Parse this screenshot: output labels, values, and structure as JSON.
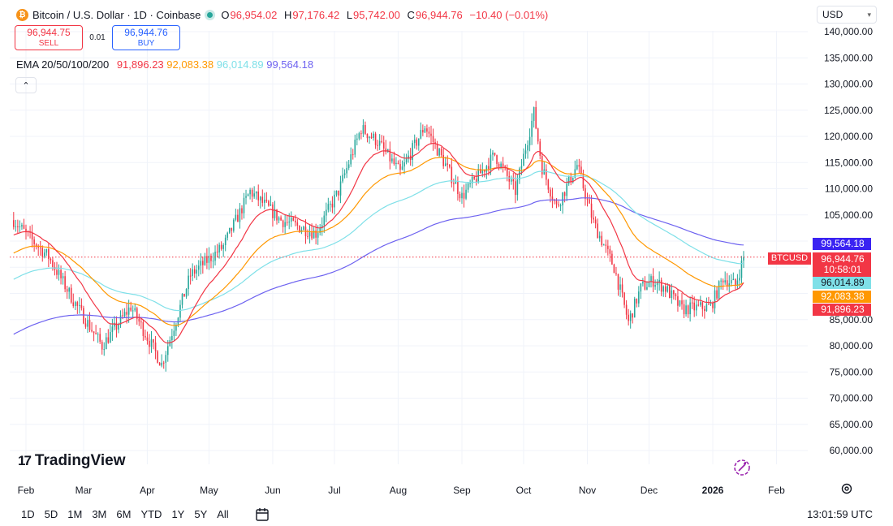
{
  "header": {
    "coin_glyph": "₿",
    "title": "Bitcoin / U.S. Dollar · 1D · Coinbase",
    "ohlc": {
      "o_label": "O",
      "o": "96,954.02",
      "h_label": "H",
      "h": "97,176.42",
      "l_label": "L",
      "l": "95,742.00",
      "c_label": "C",
      "c": "96,944.76",
      "change": "−10.40 (−0.01%)"
    }
  },
  "trade": {
    "sell_price": "96,944.75",
    "sell_label": "SELL",
    "spread": "0.01",
    "buy_price": "96,944.76",
    "buy_label": "BUY"
  },
  "indicator": {
    "name": "EMA 20/50/100/200",
    "values": [
      "91,896.23",
      "92,083.38",
      "96,014.89",
      "99,564.18"
    ],
    "colors": [
      "#f23645",
      "#ff9800",
      "#7fe0e8",
      "#6d62f0"
    ]
  },
  "currency": {
    "label": "USD",
    "chevron_icon": "chevron-down-icon"
  },
  "collapse_icon": "chevron-up-icon",
  "brand": {
    "mark": "17",
    "name": "TradingView"
  },
  "price_tags": {
    "ema200": "99,564.18",
    "symbol": "BTCUSD",
    "last_price": "96,944.76",
    "countdown": "10:58:01",
    "ema100": "96,014.89",
    "ema50": "92,083.38",
    "ema20": "91,896.23"
  },
  "colors": {
    "up": "#26a69a",
    "down": "#f23645",
    "ema20": "#f23645",
    "ema50": "#ff9800",
    "ema100": "#7fe0e8",
    "ema200": "#6d62f0",
    "ema200_tag": "#3a23f2",
    "ema100_tag": "#7fe0e8",
    "ema50_tag": "#ff9800",
    "ema20_tag": "#f23645"
  },
  "timeframes": [
    "1D",
    "5D",
    "1M",
    "3M",
    "6M",
    "YTD",
    "1Y",
    "5Y",
    "All"
  ],
  "clock": "13:01:59 UTC",
  "chart_data": {
    "type": "candlestick",
    "title": "Bitcoin / U.S. Dollar · 1D · Coinbase",
    "ylim": [
      55000,
      142000
    ],
    "y_ticks": [
      140000,
      135000,
      130000,
      125000,
      120000,
      115000,
      110000,
      105000,
      100000,
      95000,
      90000,
      85000,
      80000,
      75000,
      70000,
      65000,
      60000
    ],
    "y_tick_labels": [
      "140,000.00",
      "135,000.00",
      "130,000.00",
      "125,000.00",
      "120,000.00",
      "115,000.00",
      "110,000.00",
      "105,000.00",
      "",
      "",
      "",
      "85,000.00",
      "80,000.00",
      "75,000.00",
      "70,000.00",
      "65,000.00",
      "60,000.00"
    ],
    "x_labels": [
      "Feb",
      "Mar",
      "Apr",
      "May",
      "Jun",
      "Jul",
      "Aug",
      "Sep",
      "Oct",
      "Nov",
      "Dec",
      "2026",
      "Feb"
    ],
    "x_label_positions_month_index": [
      0,
      1,
      2,
      3,
      4,
      5,
      6,
      7,
      8,
      9,
      10,
      11,
      12
    ],
    "x_start": "2025-01-26",
    "x_end": "2026-01-16",
    "close_keypoints": [
      {
        "date": "2025-01-26",
        "close": 104000
      },
      {
        "date": "2025-02-03",
        "close": 100500
      },
      {
        "date": "2025-02-12",
        "close": 97000
      },
      {
        "date": "2025-02-25",
        "close": 88000
      },
      {
        "date": "2025-03-10",
        "close": 80000
      },
      {
        "date": "2025-03-24",
        "close": 87500
      },
      {
        "date": "2025-04-08",
        "close": 76500
      },
      {
        "date": "2025-04-22",
        "close": 93500
      },
      {
        "date": "2025-05-08",
        "close": 99000
      },
      {
        "date": "2025-05-21",
        "close": 109500
      },
      {
        "date": "2025-06-05",
        "close": 104000
      },
      {
        "date": "2025-06-22",
        "close": 101500
      },
      {
        "date": "2025-07-03",
        "close": 109500
      },
      {
        "date": "2025-07-14",
        "close": 121500
      },
      {
        "date": "2025-07-22",
        "close": 119000
      },
      {
        "date": "2025-08-02",
        "close": 113000
      },
      {
        "date": "2025-08-14",
        "close": 122000
      },
      {
        "date": "2025-08-22",
        "close": 116000
      },
      {
        "date": "2025-09-01",
        "close": 108500
      },
      {
        "date": "2025-09-17",
        "close": 116500
      },
      {
        "date": "2025-09-27",
        "close": 109500
      },
      {
        "date": "2025-10-06",
        "close": 124500
      },
      {
        "date": "2025-10-10",
        "close": 114000
      },
      {
        "date": "2025-10-17",
        "close": 106500
      },
      {
        "date": "2025-10-27",
        "close": 114500
      },
      {
        "date": "2025-11-04",
        "close": 103500
      },
      {
        "date": "2025-11-14",
        "close": 95000
      },
      {
        "date": "2025-11-21",
        "close": 84500
      },
      {
        "date": "2025-11-27",
        "close": 91000
      },
      {
        "date": "2025-12-03",
        "close": 92500
      },
      {
        "date": "2025-12-09",
        "close": 91000
      },
      {
        "date": "2025-12-17",
        "close": 87000
      },
      {
        "date": "2025-12-31",
        "close": 87500
      },
      {
        "date": "2026-01-06",
        "close": 93000
      },
      {
        "date": "2026-01-12",
        "close": 91500
      },
      {
        "date": "2026-01-16",
        "close": 96944.76
      }
    ],
    "series": [
      {
        "name": "EMA 20",
        "last": 91896.23
      },
      {
        "name": "EMA 50",
        "last": 92083.38
      },
      {
        "name": "EMA 100",
        "last": 96014.89
      },
      {
        "name": "EMA 200",
        "last": 99564.18
      }
    ],
    "last_price": 96944.76,
    "grid": true
  }
}
